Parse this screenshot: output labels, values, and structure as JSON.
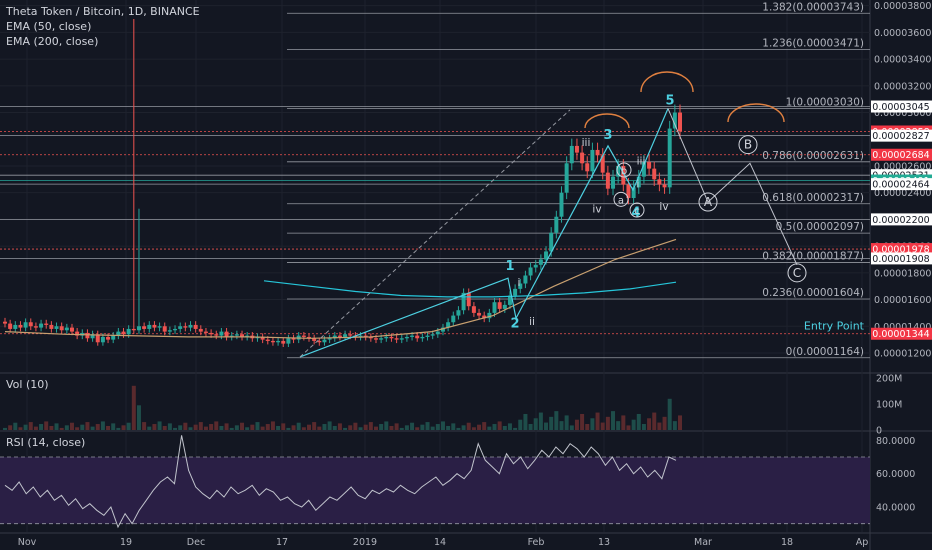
{
  "header": {
    "symbol_line": "Theta Token / Bitcoin, 1D, BINANCE",
    "ema50": "EMA (50, close)",
    "ema200": "EMA (200, close)"
  },
  "volume_pane": {
    "title": "Vol (10)"
  },
  "rsi_pane": {
    "title": "RSI (14, close)"
  },
  "colors": {
    "background": "#131722",
    "up": "#26a69a",
    "down": "#ef5350",
    "ema50": "#c8a070",
    "ema200": "#26c6da",
    "rsi_line": "#c0c3cc",
    "rsi_band": "#2a1f45",
    "fib": "#9598a1",
    "wave": "#4dd0e1",
    "annot": "#e08040"
  },
  "chart_data": [
    {
      "type": "candlestick",
      "title": "Theta Token / Bitcoin, 1D, BINANCE",
      "series": [
        {
          "name": "EMA (50, close)"
        },
        {
          "name": "EMA (200, close)"
        }
      ],
      "x_tick_labels": [
        "Nov",
        "19",
        "Dec",
        "17",
        "2019",
        "14",
        "Feb",
        "13",
        "Mar",
        "18",
        "Ap"
      ],
      "y_tick_labels": [
        "0.00003800",
        "0.00003600",
        "0.00003400",
        "0.00003200",
        "0.00003000",
        "0.00002600",
        "0.00002400",
        "0.00002200",
        "0.00002000",
        "0.00001800",
        "0.00001600",
        "0.00001400",
        "0.00001200"
      ],
      "ylim": [
        1.08e-05,
        3.82e-05
      ],
      "fib_levels": [
        {
          "label": "1.382(0.00003743)",
          "value": 3.743e-05
        },
        {
          "label": "1.236(0.00003471)",
          "value": 3.471e-05
        },
        {
          "label": "1(0.00003030)",
          "value": 3.03e-05
        },
        {
          "label": "0.786(0.00002631)",
          "value": 2.631e-05
        },
        {
          "label": "0.618(0.00002317)",
          "value": 2.317e-05
        },
        {
          "label": "0.5(0.00002097)",
          "value": 2.097e-05
        },
        {
          "label": "0.382(0.00001877)",
          "value": 1.877e-05
        },
        {
          "label": "0.236(0.00001604)",
          "value": 1.604e-05
        },
        {
          "label": "0(0.00001164)",
          "value": 1.164e-05
        }
      ],
      "price_tags": [
        {
          "label": "0.00003045",
          "value": 3.045e-05,
          "style": "white"
        },
        {
          "label": "0.00002858",
          "value": 2.858e-05,
          "style": "red"
        },
        {
          "label": "0.00002827",
          "value": 2.827e-05,
          "style": "white"
        },
        {
          "label": "0.00002684",
          "value": 2.684e-05,
          "style": "red"
        },
        {
          "label": "0.00002531",
          "value": 2.531e-05,
          "style": "white"
        },
        {
          "label": "0.00002491",
          "value": 2.491e-05,
          "style": "green"
        },
        {
          "label": "0.00002464",
          "value": 2.464e-05,
          "style": "white"
        },
        {
          "label": "0.00002200",
          "value": 2.2e-05,
          "style": "white"
        },
        {
          "label": "0.00001978",
          "value": 1.978e-05,
          "style": "red"
        },
        {
          "label": "0.00001908",
          "value": 1.908e-05,
          "style": "white"
        },
        {
          "label": "0.00001344",
          "value": 1.344e-05,
          "style": "red"
        }
      ],
      "annotations": {
        "entry_point_label": "Entry Point",
        "entry_point_value": 1.344e-05,
        "wave_labels": [
          "1",
          "2",
          "3",
          "4",
          "5",
          "i",
          "ii",
          "iii",
          "iii",
          "iv",
          "iv",
          "i"
        ],
        "abc_labels": [
          "A",
          "B",
          "C",
          "a",
          "b",
          "c"
        ]
      },
      "close_series": [
        1.42e-05,
        1.38e-05,
        1.41e-05,
        1.39e-05,
        1.43e-05,
        1.4e-05,
        1.39e-05,
        1.42e-05,
        1.41e-05,
        1.38e-05,
        1.4e-05,
        1.37e-05,
        1.39e-05,
        1.36e-05,
        1.33e-05,
        1.35e-05,
        1.31e-05,
        1.34e-05,
        1.28e-05,
        1.32e-05,
        1.3e-05,
        1.33e-05,
        1.36e-05,
        1.34e-05,
        1.38e-05,
        1.37e-05,
        1.4e-05,
        1.38e-05,
        1.41e-05,
        1.39e-05,
        1.4e-05,
        1.36e-05,
        1.37e-05,
        1.38e-05,
        1.4e-05,
        1.39e-05,
        1.41e-05,
        1.38e-05,
        1.36e-05,
        1.35e-05,
        1.34e-05,
        1.33e-05,
        1.36e-05,
        1.32e-05,
        1.33e-05,
        1.34e-05,
        1.32e-05,
        1.33e-05,
        1.31e-05,
        1.32e-05,
        1.3e-05,
        1.29e-05,
        1.28e-05,
        1.29e-05,
        1.27e-05,
        1.31e-05,
        1.3e-05,
        1.33e-05,
        1.32e-05,
        1.31e-05,
        1.29e-05,
        1.28e-05,
        1.3e-05,
        1.31e-05,
        1.33e-05,
        1.32e-05,
        1.34e-05,
        1.33e-05,
        1.32e-05,
        1.33e-05,
        1.32e-05,
        1.31e-05,
        1.3e-05,
        1.31e-05,
        1.32e-05,
        1.31e-05,
        1.3e-05,
        1.31e-05,
        1.32e-05,
        1.33e-05,
        1.31e-05,
        1.32e-05,
        1.33e-05,
        1.34e-05,
        1.36e-05,
        1.39e-05,
        1.43e-05,
        1.48e-05,
        1.52e-05,
        1.65e-05,
        1.55e-05,
        1.5e-05,
        1.48e-05,
        1.46e-05,
        1.5e-05,
        1.58e-05,
        1.53e-05,
        1.56e-05,
        1.63e-05,
        1.68e-05,
        1.72e-05,
        1.78e-05,
        1.84e-05,
        1.86e-05,
        1.9e-05,
        1.96e-05,
        2.1e-05,
        2.22e-05,
        2.4e-05,
        2.62e-05,
        2.75e-05,
        2.7e-05,
        2.62e-05,
        2.56e-05,
        2.72e-05,
        2.68e-05,
        2.55e-05,
        2.43e-05,
        2.52e-05,
        2.6e-05,
        2.46e-05,
        2.36e-05,
        2.44e-05,
        2.52e-05,
        2.63e-05,
        2.58e-05,
        2.5e-05,
        2.46e-05,
        2.44e-05,
        2.88e-05,
        3e-05,
        2.86e-05
      ],
      "notable_wicks": [
        {
          "label": "spike high",
          "value": 3.7e-05
        },
        {
          "label": "Dec high",
          "value": 2.28e-05
        }
      ],
      "ema50_points": [
        1.36e-05,
        1.34e-05,
        1.33e-05,
        1.32e-05,
        1.32e-05,
        1.31e-05,
        1.32e-05,
        1.36e-05,
        1.48e-05,
        1.7e-05,
        1.9e-05,
        2.05e-05
      ],
      "ema200_points": [
        1.74e-05,
        1.7e-05,
        1.66e-05,
        1.63e-05,
        1.62e-05,
        1.62e-05,
        1.63e-05,
        1.65e-05,
        1.68e-05,
        1.73e-05
      ]
    },
    {
      "type": "bar",
      "title": "Vol (10)",
      "y_tick_labels": [
        "200M",
        "100M",
        "0"
      ],
      "ylim": [
        0,
        200000000
      ]
    },
    {
      "type": "line",
      "title": "RSI (14, close)",
      "y_tick_labels": [
        "80.0000",
        "60.0000",
        "40.0000"
      ],
      "ylim": [
        25,
        85
      ],
      "band": [
        30,
        70
      ],
      "values": [
        53,
        50,
        55,
        48,
        52,
        46,
        50,
        44,
        47,
        41,
        45,
        39,
        42,
        38,
        35,
        40,
        28,
        36,
        30,
        38,
        44,
        50,
        55,
        58,
        54,
        83,
        62,
        52,
        48,
        45,
        50,
        46,
        52,
        48,
        50,
        53,
        47,
        51,
        49,
        44,
        46,
        42,
        40,
        44,
        38,
        42,
        46,
        44,
        48,
        52,
        47,
        45,
        50,
        48,
        51,
        49,
        53,
        50,
        48,
        52,
        55,
        58,
        53,
        56,
        60,
        57,
        62,
        78,
        68,
        64,
        60,
        72,
        66,
        70,
        63,
        68,
        74,
        70,
        76,
        72,
        78,
        75,
        70,
        76,
        72,
        65,
        70,
        62,
        66,
        60,
        64,
        58,
        62,
        57,
        70,
        68
      ]
    }
  ]
}
